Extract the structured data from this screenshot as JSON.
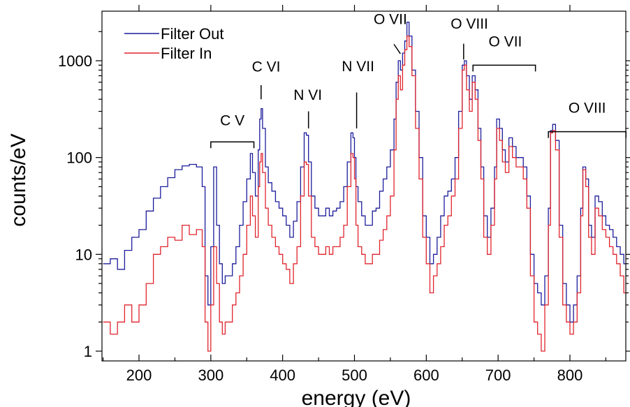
{
  "chart_data": {
    "type": "line",
    "title": "",
    "xlabel": "energy (eV)",
    "ylabel": "counts/eV",
    "xlim": [
      150,
      880
    ],
    "ylim": [
      1,
      2800
    ],
    "y_scale": "log",
    "grid": false,
    "legend_placement": "top-left",
    "x_ticks": [
      200,
      300,
      400,
      500,
      600,
      700,
      800
    ],
    "y_ticks": [
      1,
      10,
      100,
      1000
    ],
    "x_tick_labels": [
      "200",
      "300",
      "400",
      "500",
      "600",
      "700",
      "800"
    ],
    "y_tick_labels": [
      "1",
      "10",
      "100",
      "1000"
    ],
    "series": [
      {
        "name": "Filter Out",
        "color": "#1c1c9c",
        "x": [
          150,
          160,
          170,
          180,
          190,
          200,
          210,
          220,
          230,
          240,
          250,
          260,
          270,
          280,
          288,
          292,
          296,
          300,
          304,
          308,
          312,
          316,
          320,
          325,
          330,
          335,
          340,
          345,
          350,
          355,
          358,
          362,
          366,
          368,
          370,
          372,
          376,
          380,
          385,
          390,
          395,
          400,
          405,
          410,
          415,
          420,
          425,
          430,
          433,
          436,
          440,
          445,
          450,
          455,
          460,
          465,
          470,
          475,
          480,
          485,
          490,
          495,
          498,
          500,
          502,
          505,
          510,
          515,
          520,
          525,
          530,
          535,
          540,
          545,
          550,
          555,
          558,
          561,
          564,
          567,
          570,
          573,
          576,
          580,
          585,
          590,
          595,
          600,
          605,
          610,
          615,
          620,
          625,
          630,
          635,
          640,
          645,
          650,
          653,
          656,
          660,
          664,
          668,
          672,
          676,
          680,
          685,
          690,
          695,
          698,
          702,
          706,
          710,
          715,
          720,
          725,
          730,
          735,
          740,
          745,
          750,
          755,
          760,
          765,
          770,
          773,
          776,
          780,
          785,
          790,
          795,
          800,
          805,
          810,
          815,
          818,
          822,
          826,
          830,
          835,
          840,
          845,
          850,
          855,
          860,
          865,
          870,
          875,
          880
        ],
        "values": [
          8,
          9,
          7,
          11,
          15,
          18,
          28,
          38,
          50,
          62,
          75,
          82,
          85,
          80,
          50,
          6,
          3,
          12,
          80,
          20,
          8,
          5,
          6,
          6,
          8,
          12,
          20,
          35,
          60,
          110,
          70,
          40,
          120,
          250,
          320,
          200,
          80,
          55,
          45,
          35,
          30,
          25,
          20,
          15,
          22,
          35,
          80,
          180,
          170,
          90,
          40,
          30,
          25,
          25,
          30,
          25,
          28,
          30,
          35,
          50,
          90,
          180,
          160,
          100,
          50,
          35,
          25,
          20,
          20,
          28,
          30,
          45,
          60,
          80,
          120,
          250,
          600,
          1000,
          800,
          1200,
          1600,
          2500,
          1800,
          800,
          300,
          100,
          25,
          15,
          8,
          10,
          15,
          25,
          40,
          45,
          60,
          100,
          300,
          900,
          1000,
          700,
          400,
          700,
          500,
          200,
          80,
          25,
          15,
          30,
          80,
          250,
          200,
          120,
          90,
          160,
          130,
          100,
          100,
          80,
          40,
          10,
          5,
          4,
          3,
          6,
          30,
          190,
          220,
          150,
          20,
          5,
          3,
          2,
          3,
          6,
          30,
          80,
          60,
          20,
          15,
          40,
          35,
          25,
          20,
          18,
          15,
          12,
          10,
          8,
          6
        ],
        "step": true
      },
      {
        "name": "Filter In",
        "color": "#e0242c",
        "x": [
          150,
          160,
          170,
          180,
          190,
          200,
          210,
          220,
          230,
          240,
          250,
          260,
          270,
          280,
          288,
          292,
          296,
          300,
          304,
          308,
          312,
          316,
          320,
          325,
          330,
          335,
          340,
          345,
          350,
          355,
          358,
          362,
          366,
          368,
          370,
          372,
          376,
          380,
          385,
          390,
          395,
          400,
          405,
          410,
          415,
          420,
          425,
          430,
          433,
          436,
          440,
          445,
          450,
          455,
          460,
          465,
          470,
          475,
          480,
          485,
          490,
          495,
          498,
          500,
          502,
          505,
          510,
          515,
          520,
          525,
          530,
          535,
          540,
          545,
          550,
          555,
          558,
          561,
          564,
          567,
          570,
          573,
          576,
          580,
          585,
          590,
          595,
          600,
          605,
          610,
          615,
          620,
          625,
          630,
          635,
          640,
          645,
          650,
          653,
          656,
          660,
          664,
          668,
          672,
          676,
          680,
          685,
          690,
          695,
          698,
          702,
          706,
          710,
          715,
          720,
          725,
          730,
          735,
          740,
          745,
          750,
          755,
          760,
          765,
          770,
          773,
          776,
          780,
          785,
          790,
          795,
          800,
          805,
          810,
          815,
          818,
          822,
          826,
          830,
          835,
          840,
          845,
          850,
          855,
          860,
          865,
          870,
          875,
          880
        ],
        "values": [
          2,
          1.5,
          2,
          3,
          2,
          3,
          5,
          10,
          12,
          15,
          14,
          20,
          16,
          18,
          12,
          2,
          1,
          3,
          12,
          5,
          2,
          1.5,
          2,
          2,
          3,
          4,
          6,
          10,
          20,
          40,
          25,
          15,
          50,
          90,
          110,
          70,
          30,
          20,
          15,
          12,
          10,
          8,
          7,
          5,
          8,
          12,
          40,
          90,
          85,
          40,
          15,
          12,
          10,
          10,
          12,
          10,
          12,
          12,
          15,
          20,
          50,
          110,
          100,
          60,
          20,
          12,
          10,
          8,
          8,
          10,
          10,
          14,
          18,
          25,
          40,
          120,
          400,
          700,
          500,
          900,
          1300,
          1800,
          1400,
          700,
          200,
          60,
          15,
          8,
          4,
          6,
          8,
          12,
          20,
          25,
          40,
          60,
          200,
          800,
          900,
          500,
          300,
          600,
          400,
          150,
          60,
          15,
          10,
          20,
          60,
          200,
          150,
          90,
          70,
          130,
          100,
          80,
          80,
          60,
          30,
          6,
          2,
          1.5,
          1,
          3,
          20,
          180,
          190,
          120,
          15,
          3,
          2,
          1.5,
          2,
          4,
          25,
          75,
          50,
          15,
          10,
          30,
          25,
          18,
          15,
          12,
          10,
          8,
          6,
          4,
          1
        ]
      }
    ],
    "annotations": [
      {
        "label": "C V",
        "type": "bracket",
        "x_start": 300,
        "x_end": 360,
        "y": 145,
        "text_x": 330,
        "text_y": 215
      },
      {
        "label": "C VI",
        "type": "line",
        "x": 370,
        "y_top": 560,
        "y_bottom": 400,
        "text_x": 377,
        "text_y": 770
      },
      {
        "label": "N VI",
        "type": "line",
        "x": 436,
        "y_top": 300,
        "y_bottom": 200,
        "text_x": 435,
        "text_y": 395
      },
      {
        "label": "N VII",
        "type": "line",
        "x": 503,
        "y_top": 470,
        "y_bottom": 200,
        "text_x": 505,
        "text_y": 780
      },
      {
        "label": "O VII",
        "type": "diagonal",
        "x_top": 555,
        "y_top": 1480,
        "x_bottom": 564,
        "y_bottom": 1180,
        "text_x": 550,
        "text_y": 2400
      },
      {
        "label": "O VIII",
        "type": "line",
        "x": 652,
        "y_top": 1500,
        "y_bottom": 1030,
        "text_x": 660,
        "text_y": 2150
      },
      {
        "label": "O VII",
        "type": "bracket",
        "x_start": 665,
        "x_end": 752,
        "y": 900,
        "text_x": 710,
        "text_y": 1400
      },
      {
        "label": "O VIII",
        "type": "bracket",
        "x_start": 770,
        "x_end": 878,
        "y": 185,
        "text_x": 824,
        "text_y": 290
      }
    ]
  }
}
